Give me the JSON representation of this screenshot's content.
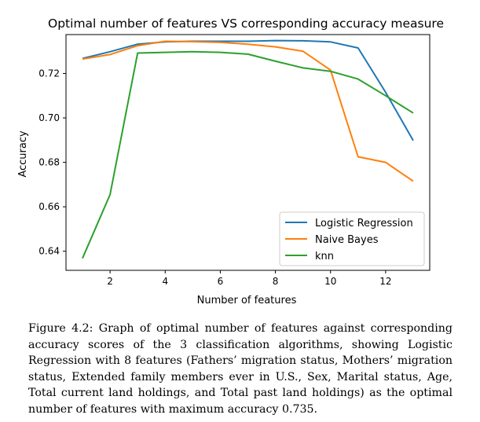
{
  "chart_data": {
    "type": "line",
    "title": "Optimal number of features VS corresponding accuracy measure",
    "xlabel": "Number of features",
    "ylabel": "Accuracy",
    "xlim": [
      0.4,
      13.6
    ],
    "ylim": [
      0.6314,
      0.7375
    ],
    "xticks": [
      2,
      4,
      6,
      8,
      10,
      12
    ],
    "yticks": [
      0.64,
      0.66,
      0.68,
      0.7,
      0.72
    ],
    "grid": false,
    "legend_position": "lower-right",
    "x": [
      1,
      2,
      3,
      4,
      5,
      6,
      7,
      8,
      9,
      10,
      11,
      12,
      13
    ],
    "series": [
      {
        "name": "Logistic Regression",
        "color": "#1f77b4",
        "values": [
          0.7268,
          0.7298,
          0.7332,
          0.7342,
          0.7345,
          0.7345,
          0.7345,
          0.7348,
          0.7347,
          0.7342,
          0.7315,
          0.7115,
          0.6898
        ]
      },
      {
        "name": "Naive Bayes",
        "color": "#ff7f0e",
        "values": [
          0.7265,
          0.7285,
          0.7325,
          0.7345,
          0.7343,
          0.734,
          0.7332,
          0.732,
          0.73,
          0.7215,
          0.6825,
          0.68,
          0.6715
        ]
      },
      {
        "name": "knn",
        "color": "#2ca02c",
        "values": [
          0.6368,
          0.6655,
          0.7292,
          0.7295,
          0.7298,
          0.7295,
          0.7287,
          0.7255,
          0.7225,
          0.721,
          0.7175,
          0.71,
          0.7022
        ]
      }
    ]
  },
  "caption": "Figure 4.2: Graph of optimal number of features against corresponding accuracy scores of the 3 classification algorithms, showing Logistic Regression with 8 features (Fathers’ migration status, Mothers’ migration status, Extended family members ever in U.S., Sex, Marital status, Age, Total current land holdings, and Total past land holdings) as the optimal number of features with maximum accuracy 0.735."
}
